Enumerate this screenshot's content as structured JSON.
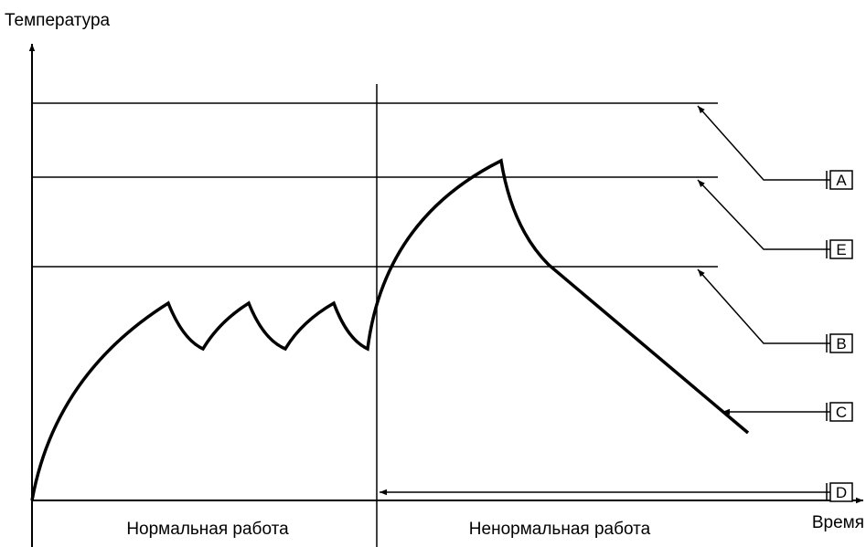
{
  "axes": {
    "y_label": "Температура",
    "x_label": "Время"
  },
  "regions": [
    "Нормальная работа",
    "Ненормальная работа"
  ],
  "callouts": [
    "A",
    "E",
    "B",
    "C",
    "D"
  ]
}
